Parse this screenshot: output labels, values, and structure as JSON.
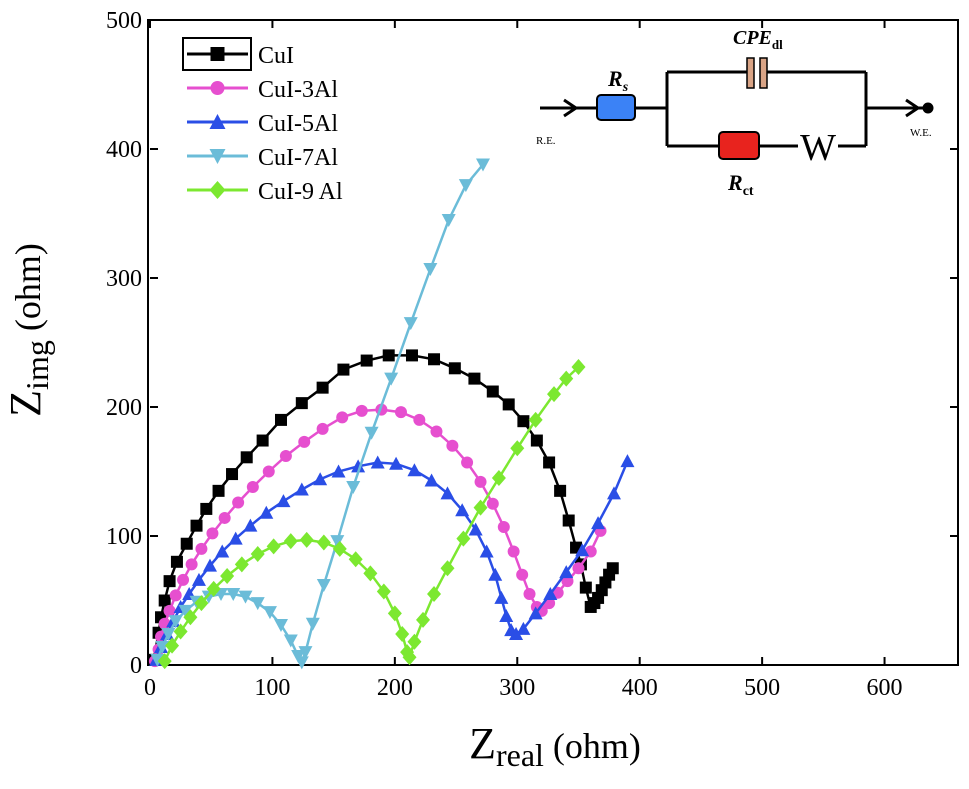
{
  "chart_data": {
    "type": "scatter",
    "xlabel_main": "Z",
    "xlabel_sub": "real",
    "xlabel_unit": " (ohm)",
    "ylabel_main": "Z",
    "ylabel_sub": "img",
    "ylabel_unit": " (ohm)",
    "xlim": [
      0,
      660
    ],
    "ylim": [
      0,
      500
    ],
    "xticks": [
      0,
      100,
      200,
      300,
      400,
      500,
      600
    ],
    "yticks": [
      0,
      100,
      200,
      300,
      400,
      500
    ],
    "grid": false,
    "legend_position": "top-left",
    "series": [
      {
        "name": "CuI",
        "color": "#000000",
        "marker": "square",
        "x": [
          3,
          7,
          9,
          12,
          16,
          22,
          30,
          38,
          46,
          56,
          67,
          79,
          92,
          107,
          124,
          141,
          158,
          177,
          195,
          214,
          232,
          249,
          265,
          280,
          293,
          305,
          316,
          326,
          335,
          342,
          348,
          352,
          356,
          360,
          363,
          366,
          369,
          372,
          375,
          378
        ],
        "y": [
          4,
          25,
          37,
          50,
          65,
          80,
          94,
          108,
          121,
          135,
          148,
          161,
          174,
          190,
          203,
          215,
          229,
          236,
          240,
          240,
          237,
          230,
          222,
          212,
          202,
          189,
          174,
          157,
          135,
          112,
          91,
          78,
          60,
          45,
          48,
          52,
          58,
          64,
          70,
          75
        ]
      },
      {
        "name": "CuI-3Al",
        "color": "#e64fcf",
        "marker": "circle",
        "x": [
          4,
          7,
          9,
          12,
          16,
          21,
          27,
          34,
          42,
          51,
          61,
          72,
          84,
          97,
          111,
          126,
          141,
          157,
          173,
          189,
          205,
          220,
          234,
          247,
          259,
          270,
          280,
          289,
          297,
          304,
          310,
          316,
          320,
          326,
          333,
          341,
          350,
          360,
          368
        ],
        "y": [
          3,
          12,
          22,
          32,
          42,
          54,
          66,
          78,
          90,
          102,
          114,
          126,
          138,
          150,
          162,
          173,
          183,
          192,
          197,
          198,
          196,
          190,
          181,
          170,
          157,
          142,
          125,
          107,
          88,
          70,
          55,
          45,
          42,
          48,
          56,
          65,
          75,
          88,
          104
        ]
      },
      {
        "name": "CuI-5Al",
        "color": "#2a4ee6",
        "marker": "triangle-up",
        "x": [
          5,
          9,
          14,
          19,
          25,
          32,
          40,
          49,
          59,
          70,
          82,
          95,
          109,
          124,
          139,
          154,
          170,
          186,
          201,
          216,
          230,
          243,
          255,
          266,
          275,
          282,
          287,
          291,
          295,
          299,
          305,
          315,
          327,
          340,
          353,
          366,
          379,
          390
        ],
        "y": [
          4,
          14,
          24,
          34,
          45,
          55,
          66,
          77,
          88,
          98,
          108,
          118,
          127,
          136,
          144,
          150,
          154,
          157,
          156,
          151,
          143,
          133,
          120,
          105,
          88,
          70,
          52,
          38,
          27,
          24,
          28,
          40,
          55,
          72,
          89,
          110,
          133,
          158
        ]
      },
      {
        "name": "CuI-7Al",
        "color": "#6bbcd8",
        "marker": "triangle-down",
        "x": [
          6,
          10,
          15,
          21,
          29,
          38,
          48,
          58,
          68,
          78,
          88,
          98,
          107,
          115,
          121,
          124,
          127,
          133,
          142,
          153,
          166,
          181,
          197,
          213,
          229,
          244,
          258,
          272
        ],
        "y": [
          4,
          14,
          24,
          34,
          42,
          49,
          53,
          55,
          55,
          53,
          48,
          41,
          31,
          19,
          7,
          2,
          10,
          32,
          62,
          96,
          138,
          180,
          222,
          265,
          307,
          345,
          372,
          388
        ]
      },
      {
        "name": "CuI-9 Al",
        "color": "#7ce830",
        "marker": "diamond",
        "x": [
          12,
          18,
          25,
          33,
          42,
          52,
          63,
          75,
          88,
          101,
          115,
          128,
          142,
          155,
          168,
          180,
          191,
          200,
          206,
          210,
          212,
          216,
          223,
          232,
          243,
          256,
          270,
          285,
          300,
          315,
          330,
          340,
          350
        ],
        "y": [
          3,
          15,
          26,
          37,
          48,
          59,
          69,
          78,
          86,
          92,
          96,
          97,
          95,
          90,
          82,
          71,
          57,
          40,
          24,
          10,
          6,
          18,
          35,
          55,
          75,
          98,
          122,
          145,
          168,
          190,
          210,
          222,
          231
        ]
      }
    ]
  },
  "circuit": {
    "rs_main": "R",
    "rs_sub": "s",
    "cpe_main": "CPE",
    "cpe_sub": "dl",
    "rct_main": "R",
    "rct_sub": "ct",
    "w_label": "W",
    "re_label": "R.E.",
    "we_label": "W.E.",
    "rs_color": "#3b82f6",
    "rct_color": "#e8231e",
    "cpe_color": "#d9a486"
  }
}
